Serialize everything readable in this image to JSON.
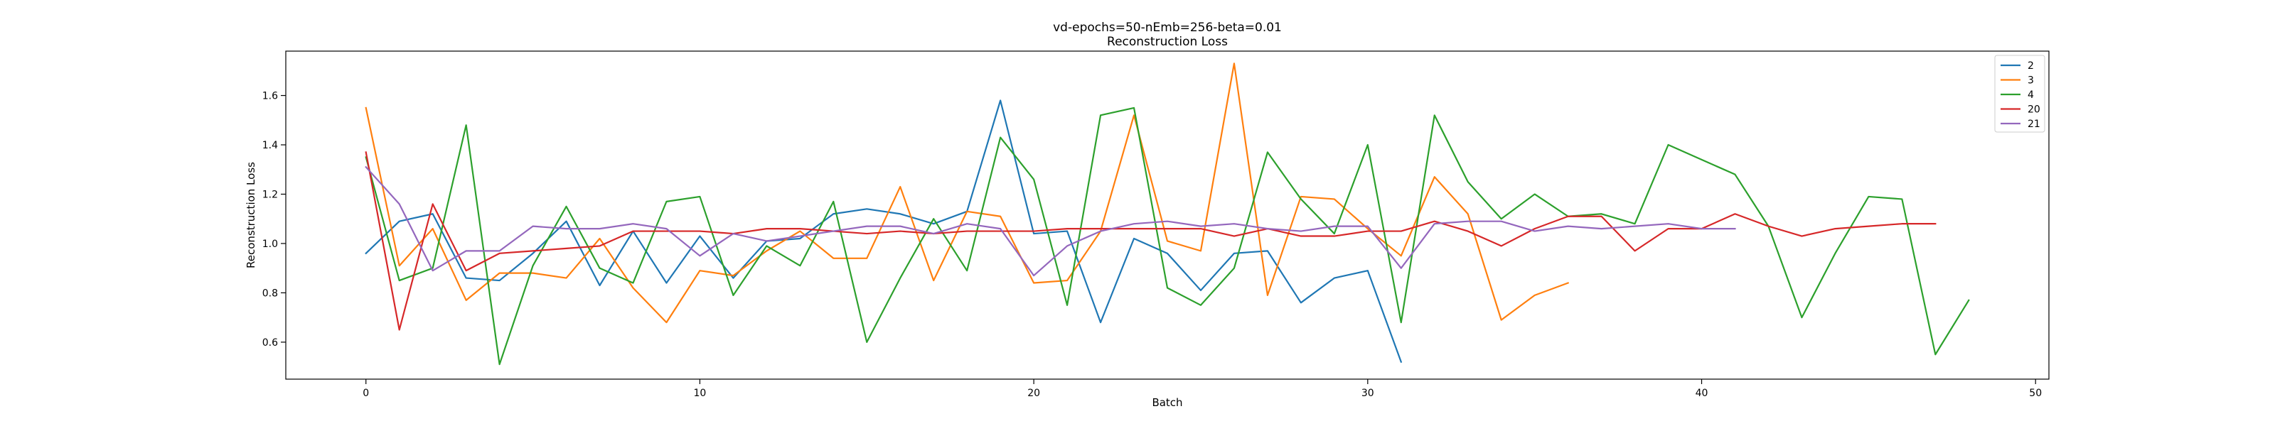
{
  "chart_data": {
    "type": "line",
    "title": "vd-epochs=50-nEmb=256-beta=0.01",
    "subtitle": "Reconstruction Loss",
    "xlabel": "Batch",
    "ylabel": "Reconstruction Loss",
    "xlim": [
      -2.4,
      50.4
    ],
    "ylim": [
      0.45,
      1.78
    ],
    "xticks": [
      0,
      10,
      20,
      30,
      40,
      50
    ],
    "yticks": [
      0.6,
      0.8,
      1.0,
      1.2,
      1.4,
      1.6
    ],
    "grid": false,
    "legend_position": "top-right",
    "series": [
      {
        "name": "2",
        "color": "#1f77b4",
        "x": [
          0,
          1,
          2,
          3,
          4,
          5,
          6,
          7,
          8,
          9,
          10,
          11,
          12,
          13,
          14,
          15,
          16,
          17,
          18,
          19,
          20,
          21,
          22,
          23,
          24,
          25,
          26,
          27,
          28,
          29,
          30,
          31
        ],
        "y": [
          0.96,
          1.09,
          1.12,
          0.86,
          0.85,
          0.96,
          1.09,
          0.83,
          1.05,
          0.84,
          1.03,
          0.86,
          1.01,
          1.02,
          1.12,
          1.14,
          1.12,
          1.08,
          1.13,
          1.58,
          1.04,
          1.05,
          0.68,
          1.02,
          0.96,
          0.81,
          0.96,
          0.97,
          0.76,
          0.86,
          0.89,
          0.52
        ]
      },
      {
        "name": "3",
        "color": "#ff7f0e",
        "x": [
          0,
          1,
          2,
          3,
          4,
          5,
          6,
          7,
          8,
          9,
          10,
          11,
          12,
          13,
          14,
          15,
          16,
          17,
          18,
          19,
          20,
          21,
          22,
          23,
          24,
          25,
          26,
          27,
          28,
          29,
          30,
          31,
          32,
          33,
          34,
          35,
          36
        ],
        "y": [
          1.55,
          0.91,
          1.06,
          0.77,
          0.88,
          0.88,
          0.86,
          1.02,
          0.82,
          0.68,
          0.89,
          0.87,
          0.97,
          1.05,
          0.94,
          0.94,
          1.23,
          0.85,
          1.13,
          1.11,
          0.84,
          0.85,
          1.05,
          1.52,
          1.01,
          0.97,
          1.73,
          0.79,
          1.19,
          1.18,
          1.06,
          0.95,
          1.27,
          1.12,
          0.69,
          0.79,
          0.84
        ]
      },
      {
        "name": "4",
        "color": "#2ca02c",
        "x": [
          0,
          1,
          2,
          3,
          4,
          5,
          6,
          7,
          8,
          9,
          10,
          11,
          12,
          13,
          14,
          15,
          16,
          17,
          18,
          19,
          20,
          21,
          22,
          23,
          24,
          25,
          26,
          27,
          28,
          29,
          30,
          31,
          32,
          33,
          34,
          35,
          36,
          37,
          38,
          39,
          40,
          41,
          42,
          43,
          44,
          45,
          46,
          47,
          48
        ],
        "y": [
          1.35,
          0.85,
          0.9,
          1.48,
          0.51,
          0.91,
          1.15,
          0.9,
          0.84,
          1.17,
          1.19,
          0.79,
          0.99,
          0.91,
          1.17,
          0.6,
          0.86,
          1.1,
          0.89,
          1.43,
          1.26,
          0.75,
          1.52,
          1.55,
          0.82,
          0.75,
          0.9,
          1.37,
          1.18,
          1.04,
          1.4,
          0.68,
          1.52,
          1.25,
          1.1,
          1.2,
          1.11,
          1.12,
          1.08,
          1.4,
          1.34,
          1.28,
          1.07,
          0.7,
          0.96,
          1.19,
          1.18,
          0.55,
          0.77
        ]
      },
      {
        "name": "20",
        "color": "#d62728",
        "x": [
          0,
          1,
          2,
          3,
          4,
          5,
          6,
          7,
          8,
          9,
          10,
          11,
          12,
          13,
          14,
          15,
          16,
          17,
          18,
          19,
          20,
          21,
          22,
          23,
          24,
          25,
          26,
          27,
          28,
          29,
          30,
          31,
          32,
          33,
          34,
          35,
          36,
          37,
          38,
          39,
          40,
          41,
          42,
          43,
          44,
          45,
          46,
          47
        ],
        "y": [
          1.37,
          0.65,
          1.16,
          0.89,
          0.96,
          0.97,
          0.98,
          0.99,
          1.05,
          1.05,
          1.05,
          1.04,
          1.06,
          1.06,
          1.05,
          1.04,
          1.05,
          1.04,
          1.05,
          1.05,
          1.05,
          1.06,
          1.06,
          1.06,
          1.06,
          1.06,
          1.03,
          1.06,
          1.03,
          1.03,
          1.05,
          1.05,
          1.09,
          1.05,
          0.99,
          1.06,
          1.11,
          1.11,
          0.97,
          1.06,
          1.06,
          1.12,
          1.07,
          1.03,
          1.06,
          1.07,
          1.08,
          1.08
        ]
      },
      {
        "name": "21",
        "color": "#9467bd",
        "x": [
          0,
          1,
          2,
          3,
          4,
          5,
          6,
          7,
          8,
          9,
          10,
          11,
          12,
          13,
          14,
          15,
          16,
          17,
          18,
          19,
          20,
          21,
          22,
          23,
          24,
          25,
          26,
          27,
          28,
          29,
          30,
          31,
          32,
          33,
          34,
          35,
          36,
          37,
          38,
          39,
          40,
          41
        ],
        "y": [
          1.31,
          1.16,
          0.89,
          0.97,
          0.97,
          1.07,
          1.06,
          1.06,
          1.08,
          1.06,
          0.95,
          1.04,
          1.01,
          1.03,
          1.05,
          1.07,
          1.07,
          1.04,
          1.08,
          1.06,
          0.87,
          0.99,
          1.05,
          1.08,
          1.09,
          1.07,
          1.08,
          1.06,
          1.05,
          1.07,
          1.07,
          0.9,
          1.08,
          1.09,
          1.09,
          1.05,
          1.07,
          1.06,
          1.07,
          1.08,
          1.06,
          1.06
        ]
      }
    ]
  }
}
